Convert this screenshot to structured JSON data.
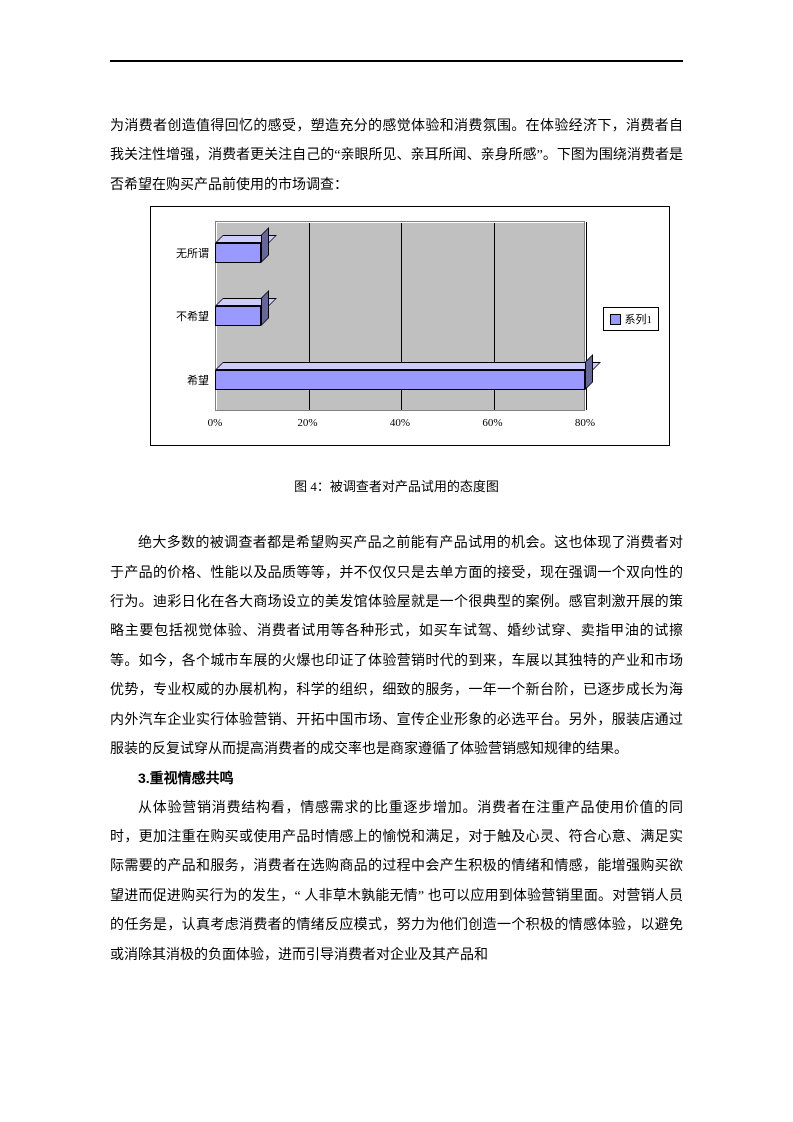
{
  "para1": "为消费者创造值得回忆的感受，塑造充分的感觉体验和消费氛围。在体验经济下，消费者自我关注性增强，消费者更关注自己的“亲眼所见、亲耳所闻、亲身所感”。下图为围绕消费者是否希望在购买产品前使用的市场调查：",
  "chart": {
    "type": "bar-horizontal-3d",
    "categories": [
      "无所谓",
      "不希望",
      "希望"
    ],
    "values": [
      10,
      10,
      80
    ],
    "bar_color": "#9999ff",
    "bar_top_color": "#ccccff",
    "bar_side_color": "#666699",
    "plot_bg": "#c0c0c0",
    "xlim": [
      0,
      80
    ],
    "xtick_step": 20,
    "xtick_labels": [
      "0%",
      "20%",
      "40%",
      "60%",
      "80%"
    ],
    "legend_label": "系列1",
    "label_fontsize": 11
  },
  "caption": "图 4：被调查者对产品试用的态度图",
  "para2": "绝大多数的被调查者都是希望购买产品之前能有产品试用的机会。这也体现了消费者对于产品的价格、性能以及品质等等，并不仅仅只是去单方面的接受，现在强调一个双向性的行为。迪彩日化在各大商场设立的美发馆体验屋就是一个很典型的案例。感官刺激开展的策略主要包括视觉体验、消费者试用等各种形式，如买车试驾、婚纱试穿、卖指甲油的试擦等。如今，各个城市车展的火爆也印证了体验营销时代的到来，车展以其独特的产业和市场优势，专业权威的办展机构，科学的组织，细致的服务，一年一个新台阶，已逐步成长为海内外汽车企业实行体验营销、开拓中国市场、宣传企业形象的必选平台。另外，服装店通过服装的反复试穿从而提高消费者的成交率也是商家遵循了体验营销感知规律的结果。",
  "heading": "3.重视情感共鸣",
  "para3": "从体验营销消费结构看，情感需求的比重逐步增加。消费者在注重产品使用价值的同时，更加注重在购买或使用产品时情感上的愉悦和满足，对于触及心灵、符合心意、满足实际需要的产品和服务，消费者在选购商品的过程中会产生积极的情绪和情感，能增强购买欲望进而促进购买行为的发生，“ 人非草木孰能无情” 也可以应用到体验营销里面。对营销人员的任务是，认真考虑消费者的情绪反应模式，努力为他们创造一个积极的情感体验，以避免或消除其消极的负面体验，进而引导消费者对企业及其产品和"
}
